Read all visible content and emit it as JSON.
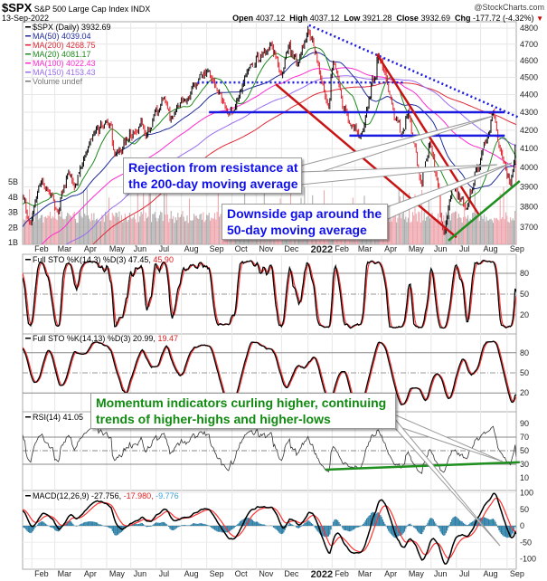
{
  "header": {
    "symbol": "$SPX",
    "name": "S&P 500 Large Cap Index",
    "exchange": "INDX",
    "watermark": "@StockCharts.com",
    "date": "13-Sep-2022",
    "open_label": "Open",
    "open": "4037.12",
    "high_label": "High",
    "high": "4037.12",
    "low_label": "Low",
    "low": "3921.28",
    "close_label": "Close",
    "close": "3932.69",
    "chg_label": "Chg",
    "chg": "-177.72 (-4.32%)"
  },
  "chart_data": {
    "type": "line",
    "title": "$SPX S&P 500 Large Cap Index (Daily)",
    "legend_placement": "top-left",
    "legend": [
      {
        "label": "$SPX (Daily)",
        "value": "3932.69",
        "color": "#000000"
      },
      {
        "label": "MA(50)",
        "value": "4039.04",
        "color": "#1f2a9c"
      },
      {
        "label": "MA(200)",
        "value": "4268.75",
        "color": "#e02a36"
      },
      {
        "label": "MA(20)",
        "value": "4081.17",
        "color": "#1f8a1f"
      },
      {
        "label": "MA(100)",
        "value": "4022.43",
        "color": "#ff2ad0"
      },
      {
        "label": "MA(150)",
        "value": "4153.43",
        "color": "#9a6cf0"
      },
      {
        "label": "Volume",
        "value": "undef",
        "color": "#777777"
      }
    ],
    "price_axis": {
      "ticks": [
        4800,
        4700,
        4600,
        4500,
        4400,
        4300,
        4200,
        4100,
        4000,
        3900,
        3800,
        3700
      ],
      "scale": "log",
      "ylim": [
        3620,
        4850
      ]
    },
    "volume_axis": {
      "ticks": [
        "5B",
        "4B",
        "3B",
        "2B",
        "1B"
      ]
    },
    "x_axis": {
      "labels": [
        "Feb",
        "Mar",
        "Apr",
        "May",
        "Jun",
        "Jul",
        "Aug",
        "Sep",
        "Oct",
        "Nov",
        "Dec",
        "2022",
        "Feb",
        "Mar",
        "Apr",
        "May",
        "Jun",
        "Jul",
        "Aug",
        "Sep"
      ],
      "start": "2021-01-20",
      "end": "2022-09-13"
    },
    "price_keypoints": [
      [
        "2021-01-20",
        3850
      ],
      [
        "2021-01-29",
        3714
      ],
      [
        "2021-02-12",
        3934
      ],
      [
        "2021-03-04",
        3768
      ],
      [
        "2021-03-17",
        3975
      ],
      [
        "2021-03-24",
        3890
      ],
      [
        "2021-04-16",
        4185
      ],
      [
        "2021-05-07",
        4232
      ],
      [
        "2021-05-12",
        4063
      ],
      [
        "2021-06-14",
        4255
      ],
      [
        "2021-06-18",
        4166
      ],
      [
        "2021-07-12",
        4384
      ],
      [
        "2021-07-19",
        4258
      ],
      [
        "2021-08-27",
        4509
      ],
      [
        "2021-09-02",
        4537
      ],
      [
        "2021-09-20",
        4358
      ],
      [
        "2021-10-04",
        4300
      ],
      [
        "2021-10-21",
        4549
      ],
      [
        "2021-11-18",
        4704
      ],
      [
        "2021-12-01",
        4513
      ],
      [
        "2021-12-10",
        4712
      ],
      [
        "2021-12-20",
        4568
      ],
      [
        "2022-01-03",
        4796
      ],
      [
        "2022-01-27",
        4326
      ],
      [
        "2022-02-02",
        4589
      ],
      [
        "2022-02-23",
        4225
      ],
      [
        "2022-03-08",
        4170
      ],
      [
        "2022-03-29",
        4631
      ],
      [
        "2022-04-26",
        4175
      ],
      [
        "2022-05-04",
        4300
      ],
      [
        "2022-05-20",
        3901
      ],
      [
        "2022-05-31",
        4132
      ],
      [
        "2022-06-16",
        3666
      ],
      [
        "2022-06-27",
        3900
      ],
      [
        "2022-07-14",
        3790
      ],
      [
        "2022-08-16",
        4305
      ],
      [
        "2022-08-26",
        4058
      ],
      [
        "2022-09-06",
        3908
      ],
      [
        "2022-09-12",
        4110
      ],
      [
        "2022-09-13",
        3932.69
      ]
    ],
    "trendlines": [
      {
        "name": "downtrend-resistance",
        "from": [
          "2022-01-04",
          4818
        ],
        "to": [
          "2022-09-16",
          4268
        ],
        "color": "#1a1ae0",
        "style": "dotted"
      },
      {
        "name": "prior-high-support",
        "from": [
          "2021-08-20",
          4470
        ],
        "to": [
          "2022-04-29",
          4470
        ],
        "color": "#1a1ae0",
        "style": "dotted"
      },
      {
        "name": "resistance-4300",
        "from": [
          "2021-09-03",
          4300
        ],
        "to": [
          "2022-08-30",
          4300
        ],
        "color": "#1a1ae0",
        "style": "solid"
      },
      {
        "name": "resistance-4170",
        "from": [
          "2022-02-22",
          4170
        ],
        "to": [
          "2022-08-30",
          4170
        ],
        "color": "#1a1ae0",
        "style": "solid"
      },
      {
        "name": "downtrend-red-1",
        "from": [
          "2021-11-24",
          4460
        ],
        "to": [
          "2022-07-01",
          3651
        ],
        "color": "#c81414",
        "style": "solid"
      },
      {
        "name": "downtrend-red-2",
        "from": [
          "2022-03-28",
          4638
        ],
        "to": [
          "2022-07-29",
          3756
        ],
        "color": "#c81414",
        "style": "solid"
      },
      {
        "name": "uptrend-support",
        "from": [
          "2022-06-22",
          3635
        ],
        "to": [
          "2022-09-16",
          3930
        ],
        "color": "#1f8f1f",
        "style": "solid"
      }
    ],
    "rsi_trendline": {
      "from": [
        "2022-01-24",
        22
      ],
      "to": [
        "2022-09-16",
        33
      ],
      "color": "#1f8f1f"
    },
    "indicators": {
      "sto1": {
        "label": "Full STO %K(14,3) %D(3)",
        "k": "47.45,",
        "d": "45.90",
        "ticks": [
          80,
          50,
          20
        ]
      },
      "sto2": {
        "label": "Full STO %K(14,13) %D(3)",
        "k": "20.99,",
        "d": "19.47",
        "ticks": [
          80,
          50,
          20
        ]
      },
      "rsi": {
        "label": "RSI(14)",
        "value": "41.05",
        "ticks": [
          90,
          70,
          50,
          30,
          10
        ]
      },
      "macd": {
        "label": "MACD(12,26,9)",
        "macd": "-27.756,",
        "signal": "-17.980,",
        "hist": "-9.776",
        "ticks": [
          100,
          50,
          0,
          -50,
          -100
        ]
      }
    }
  },
  "annotations": {
    "rejection": [
      "Rejection from resistance at",
      "the 200-day moving average"
    ],
    "gap": [
      "Downside gap around the",
      "50-day moving average"
    ],
    "momentum": [
      "Momentum indicators curling higher, continuing",
      "trends of higher-highs and higher-lows"
    ]
  }
}
